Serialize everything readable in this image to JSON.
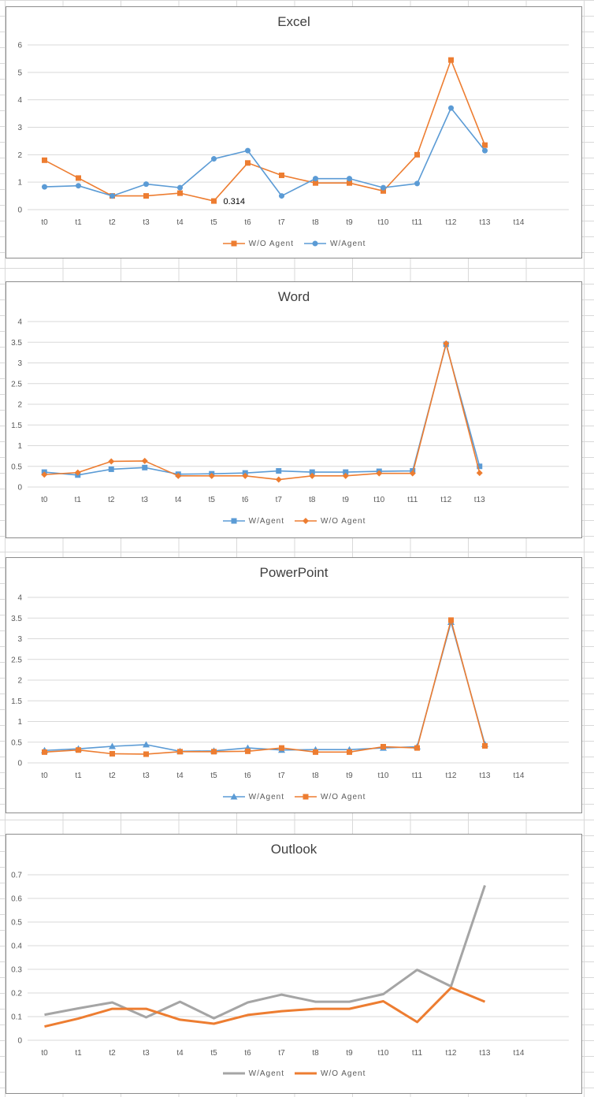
{
  "colors": {
    "blue": "#5b9bd5",
    "orange": "#ed7d31",
    "gray": "#a5a5a5",
    "grid": "#d9d9d9",
    "axis_text": "#595959"
  },
  "chart_data": [
    {
      "id": "excel",
      "type": "line",
      "title": "Excel",
      "categories": [
        "t0",
        "t1",
        "t2",
        "t3",
        "t4",
        "t5",
        "t6",
        "t7",
        "t8",
        "t9",
        "t10",
        "t11",
        "t12",
        "t13",
        "t14"
      ],
      "ylim": [
        0,
        6
      ],
      "yticks": [
        "0",
        "1",
        "2",
        "3",
        "4",
        "5",
        "6"
      ],
      "grid": true,
      "legend_position": "bottom",
      "series": [
        {
          "name": "W/O Agent",
          "color": "#ed7d31",
          "marker": "square",
          "values": [
            1.8,
            1.15,
            0.5,
            0.5,
            0.6,
            0.314,
            1.7,
            1.25,
            0.97,
            0.97,
            0.68,
            2.0,
            5.45,
            2.35,
            null
          ]
        },
        {
          "name": "W/Agent",
          "color": "#5b9bd5",
          "marker": "circle",
          "values": [
            0.83,
            0.87,
            0.5,
            0.93,
            0.8,
            1.85,
            2.15,
            0.5,
            1.13,
            1.13,
            0.8,
            0.95,
            3.7,
            2.15,
            null
          ]
        }
      ],
      "annotations": [
        {
          "series": 0,
          "index": 5,
          "text": "0.314"
        }
      ]
    },
    {
      "id": "word",
      "type": "line",
      "title": "Word",
      "categories": [
        "t0",
        "t1",
        "t2",
        "t3",
        "t4",
        "t5",
        "t6",
        "t7",
        "t8",
        "t9",
        "t10",
        "t11",
        "t12",
        "t13"
      ],
      "ylim": [
        0,
        4
      ],
      "yticks": [
        "0",
        "0.5",
        "1",
        "1.5",
        "2",
        "2.5",
        "3",
        "3.5",
        "4"
      ],
      "grid": true,
      "legend_position": "bottom",
      "series": [
        {
          "name": "W/Agent",
          "color": "#5b9bd5",
          "marker": "square",
          "values": [
            0.36,
            0.29,
            0.43,
            0.47,
            0.31,
            0.32,
            0.34,
            0.39,
            0.36,
            0.36,
            0.38,
            0.39,
            3.45,
            0.5
          ]
        },
        {
          "name": "W/O Agent",
          "color": "#ed7d31",
          "marker": "diamond",
          "values": [
            0.3,
            0.35,
            0.62,
            0.63,
            0.27,
            0.27,
            0.27,
            0.18,
            0.27,
            0.27,
            0.33,
            0.33,
            3.47,
            0.34
          ]
        }
      ],
      "annotations": []
    },
    {
      "id": "powerpoint",
      "type": "line",
      "title": "PowerPoint",
      "categories": [
        "t0",
        "t1",
        "t2",
        "t3",
        "t4",
        "t5",
        "t6",
        "t7",
        "t8",
        "t9",
        "t10",
        "t11",
        "t12",
        "t13",
        "t14"
      ],
      "ylim": [
        0,
        4
      ],
      "yticks": [
        "0",
        "0.5",
        "1",
        "1.5",
        "2",
        "2.5",
        "3",
        "3.5",
        "4"
      ],
      "grid": true,
      "legend_position": "bottom",
      "series": [
        {
          "name": "W/Agent",
          "color": "#5b9bd5",
          "marker": "triangle",
          "values": [
            0.3,
            0.34,
            0.4,
            0.44,
            0.28,
            0.29,
            0.36,
            0.31,
            0.32,
            0.32,
            0.36,
            0.39,
            3.4,
            0.45,
            null
          ]
        },
        {
          "name": "W/O Agent",
          "color": "#ed7d31",
          "marker": "square",
          "values": [
            0.26,
            0.31,
            0.22,
            0.21,
            0.27,
            0.27,
            0.28,
            0.36,
            0.26,
            0.26,
            0.39,
            0.36,
            3.45,
            0.41,
            null
          ]
        }
      ],
      "annotations": []
    },
    {
      "id": "outlook",
      "type": "line",
      "title": "Outlook",
      "categories": [
        "t0",
        "t1",
        "t2",
        "t3",
        "t4",
        "t5",
        "t6",
        "t7",
        "t8",
        "t9",
        "t10",
        "t11",
        "t12",
        "t13",
        "t14"
      ],
      "ylim": [
        0,
        0.7
      ],
      "yticks": [
        "0",
        "0.1",
        "0.2",
        "0.3",
        "0.4",
        "0.5",
        "0.6",
        "0.7"
      ],
      "grid": true,
      "legend_position": "bottom",
      "series": [
        {
          "name": "W/Agent",
          "color": "#a5a5a5",
          "marker": "none",
          "values": [
            0.108,
            0.135,
            0.16,
            0.097,
            0.163,
            0.093,
            0.16,
            0.193,
            0.163,
            0.163,
            0.195,
            0.298,
            0.228,
            0.655,
            null
          ]
        },
        {
          "name": "W/O Agent",
          "color": "#ed7d31",
          "marker": "none",
          "values": [
            0.058,
            0.092,
            0.133,
            0.133,
            0.087,
            0.07,
            0.107,
            0.123,
            0.133,
            0.133,
            0.165,
            0.077,
            0.222,
            0.163,
            null
          ]
        }
      ],
      "annotations": []
    }
  ]
}
